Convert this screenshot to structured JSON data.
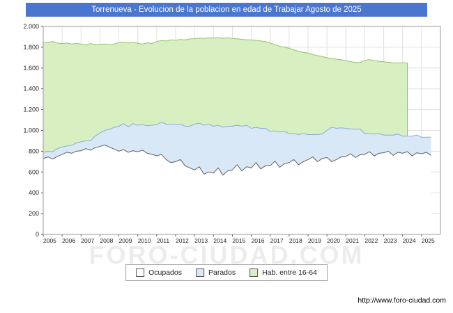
{
  "title": "Torrenueva - Evolucion de la poblacion en edad de Trabajar Agosto de 2025",
  "watermark": "FORO-CIUDAD.COM",
  "footer_url": "http://www.foro-ciudad.com",
  "colors": {
    "title_bg": "#4a76d0",
    "grid": "#e0e0e0",
    "axis_border": "#9a9a9a",
    "tick": "#555555",
    "label_text": "#222222",
    "hab_fill": "#d8efc2",
    "hab_line": "#96c169",
    "parados_fill": "#d9e8f7",
    "parados_line": "#8aadd4",
    "ocupados_fill": "#ffffff",
    "ocupados_line": "#5f5f5f"
  },
  "legend": {
    "items": [
      {
        "label": "Ocupados"
      },
      {
        "label": "Parados"
      },
      {
        "label": "Hab. entre 16-64"
      }
    ]
  },
  "chart_data": {
    "type": "area",
    "title": "Torrenueva - Evolucion de la poblacion en edad de Trabajar Agosto de 2025",
    "xlabel": "",
    "ylabel": "",
    "grid": true,
    "legend_position": "bottom",
    "ylim": [
      0,
      2000
    ],
    "x_start_year": 2005,
    "x_axis_end_year": 2026,
    "samples_per_year": 4,
    "sampling_note": "quarterly estimates read from plot, 2005Q1 to 2025Q3 (Agosto 2025)",
    "stacking_note": "Parados band is stacked on top of Ocupados; Hab. entre 16-64 is the background total",
    "y_ticks": [
      {
        "v": 0,
        "label": "0"
      },
      {
        "v": 200,
        "label": "200"
      },
      {
        "v": 400,
        "label": "400"
      },
      {
        "v": 600,
        "label": "600"
      },
      {
        "v": 800,
        "label": "800"
      },
      {
        "v": 1000,
        "label": "1.000"
      },
      {
        "v": 1200,
        "label": "1.200"
      },
      {
        "v": 1400,
        "label": "1.400"
      },
      {
        "v": 1600,
        "label": "1.600"
      },
      {
        "v": 1800,
        "label": "1.800"
      },
      {
        "v": 2000,
        "label": "2.000"
      }
    ],
    "x_tick_labels": [
      "2005",
      "2006",
      "2007",
      "2008",
      "2009",
      "2010",
      "2011",
      "2012",
      "2013",
      "2014",
      "2015",
      "2016",
      "2017",
      "2018",
      "2019",
      "2020",
      "2021",
      "2022",
      "2023",
      "2024",
      "2025"
    ],
    "series": [
      {
        "name": "Ocupados",
        "values": [
          730,
          745,
          725,
          750,
          770,
          790,
          780,
          800,
          805,
          825,
          810,
          835,
          845,
          860,
          840,
          820,
          800,
          815,
          790,
          805,
          795,
          810,
          780,
          770,
          755,
          770,
          720,
          690,
          700,
          720,
          660,
          640,
          620,
          650,
          580,
          600,
          590,
          640,
          570,
          610,
          620,
          670,
          610,
          650,
          640,
          690,
          630,
          660,
          660,
          705,
          645,
          680,
          690,
          720,
          670,
          700,
          720,
          745,
          700,
          730,
          740,
          700,
          720,
          745,
          750,
          775,
          740,
          765,
          770,
          795,
          755,
          780,
          785,
          800,
          760,
          790,
          780,
          795,
          755,
          785,
          775,
          790,
          760
        ]
      },
      {
        "name": "Parados",
        "values": [
          60,
          55,
          70,
          75,
          70,
          60,
          75,
          80,
          85,
          75,
          90,
          110,
          130,
          140,
          170,
          210,
          240,
          250,
          245,
          260,
          255,
          245,
          265,
          280,
          300,
          310,
          340,
          370,
          360,
          340,
          380,
          400,
          440,
          420,
          470,
          460,
          450,
          410,
          460,
          430,
          420,
          380,
          430,
          400,
          380,
          340,
          390,
          360,
          330,
          290,
          340,
          310,
          280,
          250,
          290,
          270,
          240,
          215,
          260,
          235,
          260,
          330,
          300,
          280,
          270,
          240,
          270,
          250,
          200,
          175,
          210,
          190,
          170,
          155,
          195,
          175,
          165,
          150,
          190,
          170,
          160,
          145,
          175
        ]
      },
      {
        "name": "Hab. entre 16-64",
        "values": [
          1850,
          1845,
          1855,
          1840,
          1835,
          1840,
          1830,
          1838,
          1830,
          1825,
          1835,
          1828,
          1826,
          1832,
          1824,
          1830,
          1845,
          1850,
          1840,
          1848,
          1838,
          1830,
          1842,
          1836,
          1855,
          1865,
          1860,
          1870,
          1868,
          1875,
          1870,
          1880,
          1882,
          1888,
          1885,
          1890,
          1888,
          1892,
          1886,
          1890,
          1884,
          1880,
          1876,
          1872,
          1870,
          1866,
          1860,
          1855,
          1840,
          1825,
          1810,
          1800,
          1790,
          1775,
          1760,
          1750,
          1745,
          1730,
          1720,
          1710,
          1700,
          1690,
          1685,
          1680,
          1670,
          1660,
          1655,
          1650,
          1675,
          1680,
          1670,
          1665,
          1660,
          1655,
          1650,
          1648,
          1650,
          1648,
          null,
          null,
          null,
          null,
          null
        ]
      }
    ]
  }
}
